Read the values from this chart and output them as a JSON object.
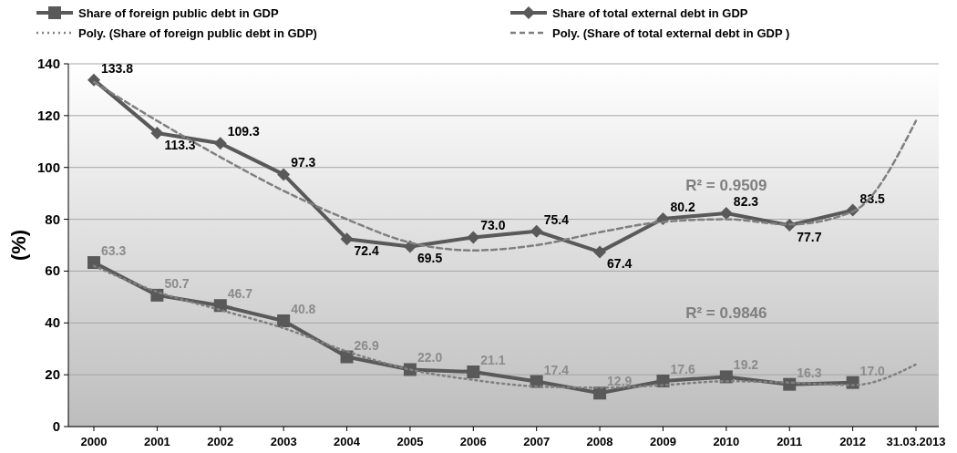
{
  "chart_data": {
    "type": "line",
    "ylabel": "(%)",
    "categories": [
      "2000",
      "2001",
      "2002",
      "2003",
      "2004",
      "2005",
      "2006",
      "2007",
      "2008",
      "2009",
      "2010",
      "2011",
      "2012",
      "31.03.2013"
    ],
    "ylim": [
      0,
      140
    ],
    "yticks": [
      0,
      20,
      40,
      60,
      80,
      100,
      120,
      140
    ],
    "grid": "y",
    "legend": "top",
    "series": [
      {
        "name": "Share of foreign public debt in GDP",
        "color": "#595959",
        "marker": "square",
        "line_style": "solid",
        "values": [
          63.3,
          50.7,
          46.7,
          40.8,
          26.9,
          22.0,
          21.1,
          17.4,
          12.9,
          17.6,
          19.2,
          16.3,
          17.0,
          null
        ],
        "value_labels": [
          "63.3",
          "50.7",
          "46.7",
          "40.8",
          "26.9",
          "22.0",
          "21.1",
          "17.4",
          "12.9",
          "17.6",
          "19.2",
          "16.3",
          "17.0",
          null
        ]
      },
      {
        "name": "Share of total external debt in GDP",
        "color": "#595959",
        "marker": "diamond",
        "line_style": "solid",
        "values": [
          133.8,
          113.3,
          109.3,
          97.3,
          72.4,
          69.5,
          73.0,
          75.4,
          67.4,
          80.2,
          82.3,
          77.7,
          83.5,
          null
        ],
        "value_labels": [
          "133.8",
          "113.3",
          "109.3",
          "97.3",
          "72.4",
          "69.5",
          "73.0",
          "75.4",
          "67.4",
          "80.2",
          "82.3",
          "77.7",
          "83.5",
          null
        ]
      },
      {
        "name": "Poly. (Share of foreign public debt in GDP)",
        "color": "#7f7f7f",
        "marker": "none",
        "line_style": "dotted",
        "values": [
          62,
          52,
          45,
          38,
          29,
          22,
          18,
          15.5,
          15,
          16,
          17.5,
          17,
          16,
          24
        ]
      },
      {
        "name": "Poly. (Share of total external debt in GDP )",
        "color": "#7f7f7f",
        "marker": "none",
        "line_style": "dashed",
        "values": [
          133,
          118,
          104,
          91,
          80,
          71,
          68,
          70,
          75,
          79,
          80,
          78,
          83,
          118
        ]
      }
    ],
    "annotations": [
      "R² = 0.9509",
      "R² = 0.9846"
    ]
  }
}
